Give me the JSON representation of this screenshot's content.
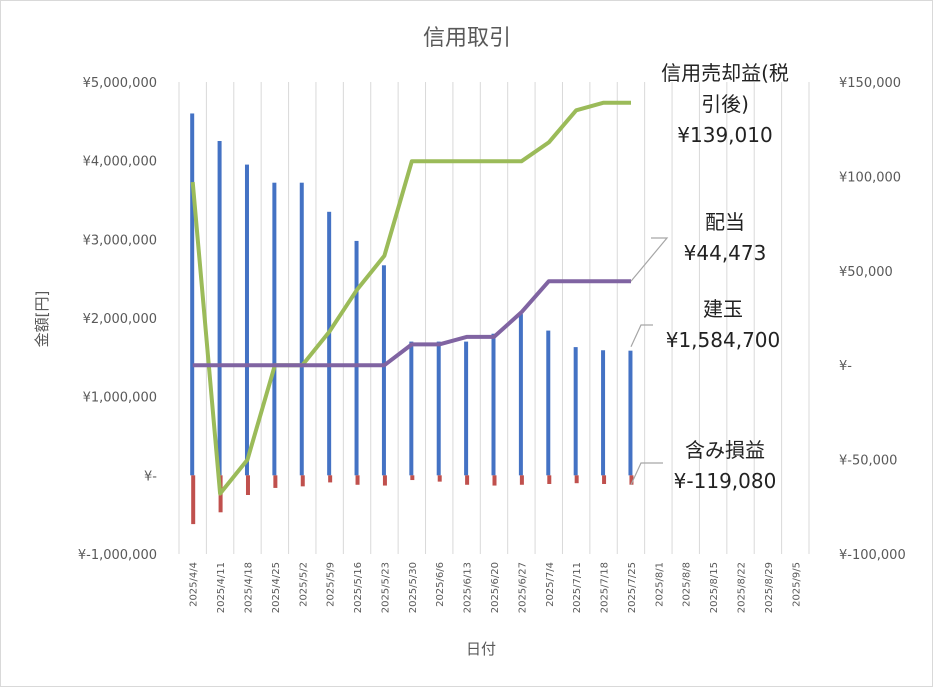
{
  "chart_data": {
    "type": "bar+line",
    "title": "信用取引",
    "xlabel": "日付",
    "ylabel": "金額[円]",
    "left_axis": {
      "ylim": [
        -1000000,
        5000000
      ],
      "ticks": [
        -1000000,
        0,
        1000000,
        2000000,
        3000000,
        4000000,
        5000000
      ],
      "tick_labels": [
        "¥-1,000,000",
        "¥-",
        "¥1,000,000",
        "¥2,000,000",
        "¥3,000,000",
        "¥4,000,000",
        "¥5,000,000"
      ]
    },
    "right_axis": {
      "ylim": [
        -100000,
        150000
      ],
      "ticks": [
        -100000,
        -50000,
        0,
        50000,
        100000,
        150000
      ],
      "tick_labels": [
        "¥-100,000",
        "¥-50,000",
        "¥-",
        "¥50,000",
        "¥100,000",
        "¥150,000"
      ]
    },
    "grid": "vertical",
    "categories": [
      "2025/4/4",
      "2025/4/11",
      "2025/4/18",
      "2025/4/25",
      "2025/5/2",
      "2025/5/9",
      "2025/5/16",
      "2025/5/23",
      "2025/5/30",
      "2025/6/6",
      "2025/6/13",
      "2025/6/20",
      "2025/6/27",
      "2025/7/4",
      "2025/7/11",
      "2025/7/18",
      "2025/7/25",
      "2025/8/1",
      "2025/8/8",
      "2025/8/15",
      "2025/8/22",
      "2025/8/29",
      "2025/9/5"
    ],
    "series": [
      {
        "name": "建玉",
        "type": "bar",
        "axis": "left",
        "color": "#4472c4",
        "values": [
          4600000,
          4250000,
          3950000,
          3720000,
          3720000,
          3350000,
          2980000,
          2670000,
          1700000,
          1700000,
          1700000,
          1800000,
          2050000,
          1840000,
          1630000,
          1590000,
          1584700,
          null,
          null,
          null,
          null,
          null,
          null
        ]
      },
      {
        "name": "含み損益",
        "type": "bar",
        "axis": "left",
        "color": "#c0504d",
        "values": [
          -620000,
          -470000,
          -250000,
          -160000,
          -140000,
          -90000,
          -120000,
          -130000,
          -60000,
          -80000,
          -120000,
          -130000,
          -120000,
          -110000,
          -100000,
          -110000,
          -119080,
          null,
          null,
          null,
          null,
          null,
          null
        ]
      },
      {
        "name": "信用売却益(税引後)",
        "type": "line",
        "axis": "right",
        "color": "#9bbb59",
        "values": [
          97000,
          -68000,
          -50000,
          0,
          0,
          18000,
          40000,
          58000,
          108000,
          108000,
          108000,
          108000,
          108000,
          118000,
          135000,
          139010,
          139010,
          null,
          null,
          null,
          null,
          null,
          null
        ]
      },
      {
        "name": "配当",
        "type": "line",
        "axis": "right",
        "color": "#8064a2",
        "values": [
          0,
          0,
          0,
          0,
          0,
          0,
          0,
          0,
          11000,
          11000,
          15000,
          15000,
          28000,
          44473,
          44473,
          44473,
          44473,
          null,
          null,
          null,
          null,
          null,
          null
        ]
      }
    ],
    "annotations": [
      {
        "lines": [
          "信用売却益(税",
          "引後)",
          "¥139,010"
        ]
      },
      {
        "lines": [
          "配当",
          "¥44,473"
        ]
      },
      {
        "lines": [
          "建玉",
          "¥1,584,700"
        ]
      },
      {
        "lines": [
          "含み損益",
          "¥-119,080"
        ]
      }
    ]
  }
}
